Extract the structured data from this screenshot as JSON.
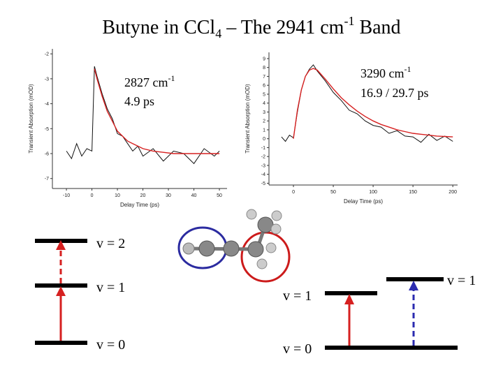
{
  "header": {
    "title_parts": [
      "Butyne in CCl",
      "4",
      " – The 2941 cm",
      "-1",
      " Band"
    ]
  },
  "chart_data": [
    {
      "type": "line",
      "xlabel": "Delay Time (ps)",
      "ylabel": "Transient Absorption (mOD)",
      "annotation": [
        "2827 cm",
        "-1",
        "4.9 ps"
      ],
      "x": [
        -10,
        -8,
        -6,
        -4,
        -2,
        0,
        1,
        2,
        4,
        6,
        8,
        10,
        12,
        14,
        16,
        18,
        20,
        24,
        28,
        32,
        36,
        40,
        44,
        48,
        50
      ],
      "series": [
        {
          "color": "#111111",
          "values": [
            -5.9,
            -6.2,
            -5.6,
            -6.1,
            -5.8,
            -5.9,
            -2.5,
            -2.9,
            -3.6,
            -4.2,
            -4.6,
            -5.2,
            -5.3,
            -5.6,
            -5.9,
            -5.7,
            -6.1,
            -5.8,
            -6.3,
            -5.9,
            -6.0,
            -6.4,
            -5.8,
            -6.1,
            -5.9
          ]
        },
        {
          "color": "#d62020",
          "values": [
            null,
            null,
            null,
            null,
            null,
            null,
            -2.6,
            -3.0,
            -3.7,
            -4.3,
            -4.7,
            -5.1,
            -5.3,
            -5.5,
            -5.6,
            -5.7,
            -5.8,
            -5.9,
            -5.95,
            -6.0,
            -6.0,
            -6.0,
            -6.0,
            -6.0,
            -6.0
          ]
        }
      ],
      "xlim": [
        -15.5,
        53
      ],
      "xticks": [
        -10,
        0,
        10,
        20,
        30,
        40,
        50
      ],
      "ylim": [
        -7.4,
        -1.8
      ],
      "yticks": [
        -2,
        -3,
        -4,
        -5,
        -6,
        -7
      ]
    },
    {
      "type": "line",
      "xlabel": "Delay Time (ps)",
      "ylabel": "Transient Absorption (mOD)",
      "annotation": [
        "3290 cm",
        "-1",
        "16.9 / 29.7 ps"
      ],
      "x": [
        -15,
        -10,
        -5,
        0,
        5,
        10,
        15,
        20,
        25,
        30,
        40,
        50,
        60,
        70,
        80,
        90,
        100,
        110,
        120,
        130,
        140,
        150,
        160,
        170,
        180,
        190,
        200
      ],
      "series": [
        {
          "color": "#111111",
          "values": [
            0.2,
            -0.3,
            0.4,
            0.1,
            3,
            5.5,
            7,
            7.8,
            8.3,
            7.6,
            6.5,
            5.2,
            4.3,
            3.2,
            2.8,
            2.0,
            1.5,
            1.3,
            0.6,
            0.9,
            0.3,
            0.2,
            -0.4,
            0.5,
            -0.2,
            0.3,
            -0.3
          ]
        },
        {
          "color": "#d62020",
          "values": [
            null,
            null,
            null,
            0,
            3.2,
            5.5,
            7,
            7.7,
            7.9,
            7.7,
            6.7,
            5.6,
            4.6,
            3.8,
            3.1,
            2.5,
            2.0,
            1.6,
            1.3,
            1.0,
            0.8,
            0.6,
            0.5,
            0.4,
            0.3,
            0.25,
            0.2
          ]
        }
      ],
      "xlim": [
        -30.7,
        206
      ],
      "xticks": [
        0,
        50,
        100,
        150,
        200
      ],
      "ylim": [
        -5.2,
        9.7
      ],
      "yticks": [
        -5,
        -4,
        -3,
        -2,
        -1,
        0,
        1,
        2,
        3,
        4,
        5,
        6,
        7,
        8,
        9
      ]
    }
  ],
  "energy_diagram": {
    "left_levels": [
      "v = 2",
      "v = 1",
      "v = 0"
    ],
    "right_levels": [
      "v = 1",
      "v = 0",
      "v = 1"
    ]
  }
}
